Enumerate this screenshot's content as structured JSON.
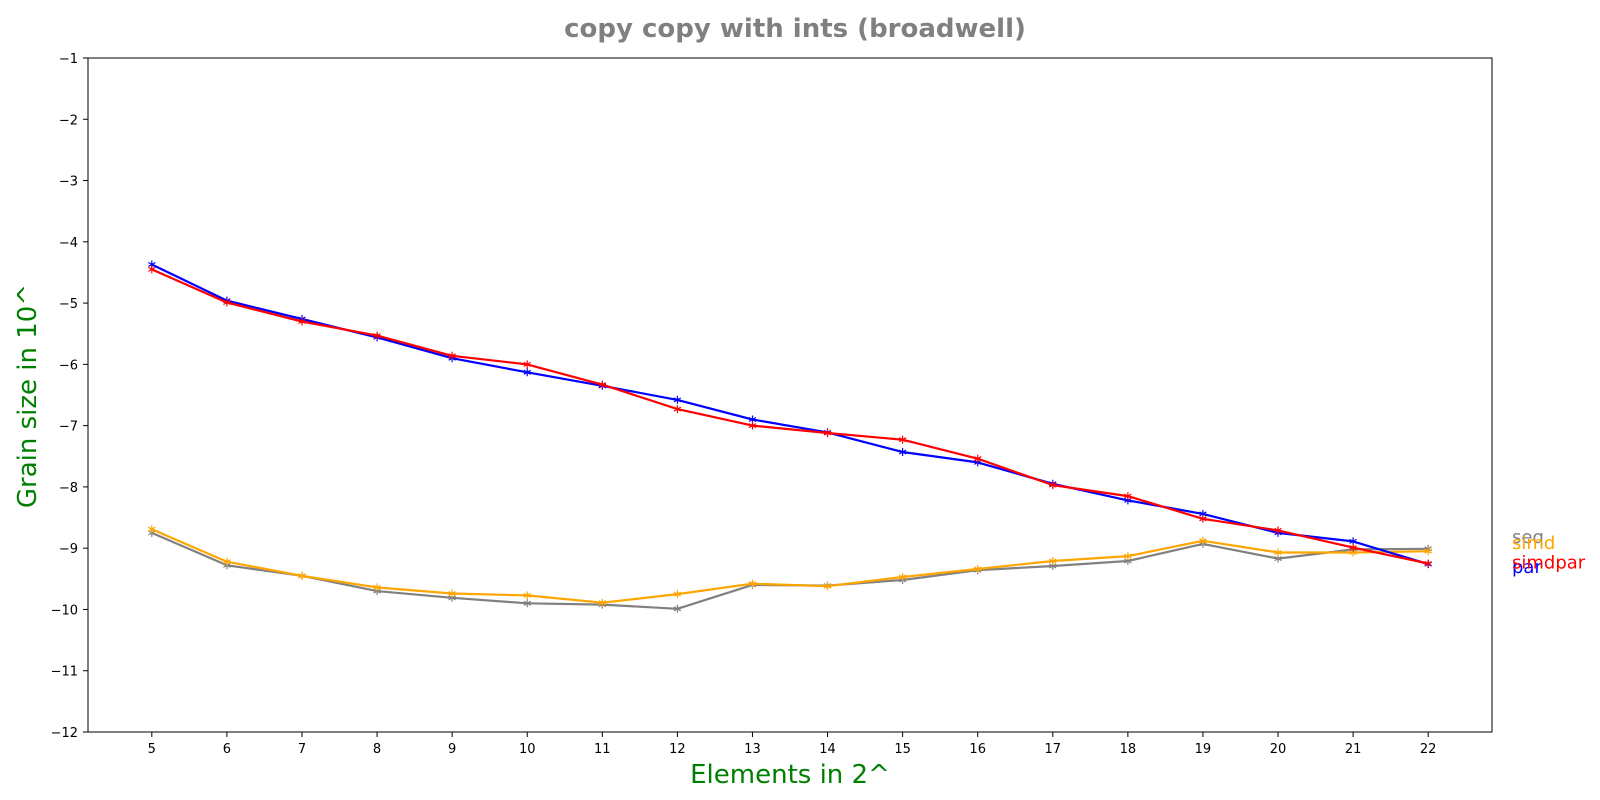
{
  "chart_data": {
    "type": "line",
    "title": "copy copy with ints  (broadwell)",
    "xlabel": "Elements in 2^",
    "ylabel": "Grain size in 10^",
    "x": [
      5,
      6,
      7,
      8,
      9,
      10,
      11,
      12,
      13,
      14,
      15,
      16,
      17,
      18,
      19,
      20,
      21,
      22
    ],
    "xlim": [
      4.15,
      22.85
    ],
    "ylim": [
      -12,
      -1
    ],
    "yticks": [
      -1,
      -2,
      -3,
      -4,
      -5,
      -6,
      -7,
      -8,
      -9,
      -10,
      -11,
      -12
    ],
    "grid": false,
    "legend": "end-of-line labels",
    "colors": {
      "title": "#808080",
      "axis_label": "#008000",
      "axes": "#000000"
    },
    "series": [
      {
        "name": "seq",
        "color": "#808080",
        "marker": "star",
        "values": [
          -8.75,
          -9.28,
          -9.45,
          -9.7,
          -9.81,
          -9.9,
          -9.92,
          -9.99,
          -9.6,
          -9.61,
          -9.52,
          -9.36,
          -9.29,
          -9.21,
          -8.93,
          -9.17,
          -9.02,
          -9.01
        ]
      },
      {
        "name": "simd",
        "color": "#ffa500",
        "marker": "star",
        "values": [
          -8.69,
          -9.22,
          -9.45,
          -9.64,
          -9.74,
          -9.77,
          -9.89,
          -9.75,
          -9.58,
          -9.62,
          -9.47,
          -9.34,
          -9.21,
          -9.13,
          -8.88,
          -9.07,
          -9.07,
          -9.05
        ]
      },
      {
        "name": "par",
        "color": "#0000ff",
        "marker": "star",
        "values": [
          -4.37,
          -4.96,
          -5.26,
          -5.56,
          -5.9,
          -6.13,
          -6.35,
          -6.58,
          -6.9,
          -7.11,
          -7.43,
          -7.6,
          -7.95,
          -8.22,
          -8.44,
          -8.75,
          -8.89,
          -9.26
        ]
      },
      {
        "name": "simdpar",
        "color": "#ff0000",
        "marker": "star",
        "values": [
          -4.45,
          -4.99,
          -5.3,
          -5.53,
          -5.86,
          -6.0,
          -6.33,
          -6.73,
          -7.0,
          -7.12,
          -7.23,
          -7.54,
          -7.97,
          -8.15,
          -8.52,
          -8.71,
          -8.99,
          -9.25
        ]
      }
    ]
  }
}
